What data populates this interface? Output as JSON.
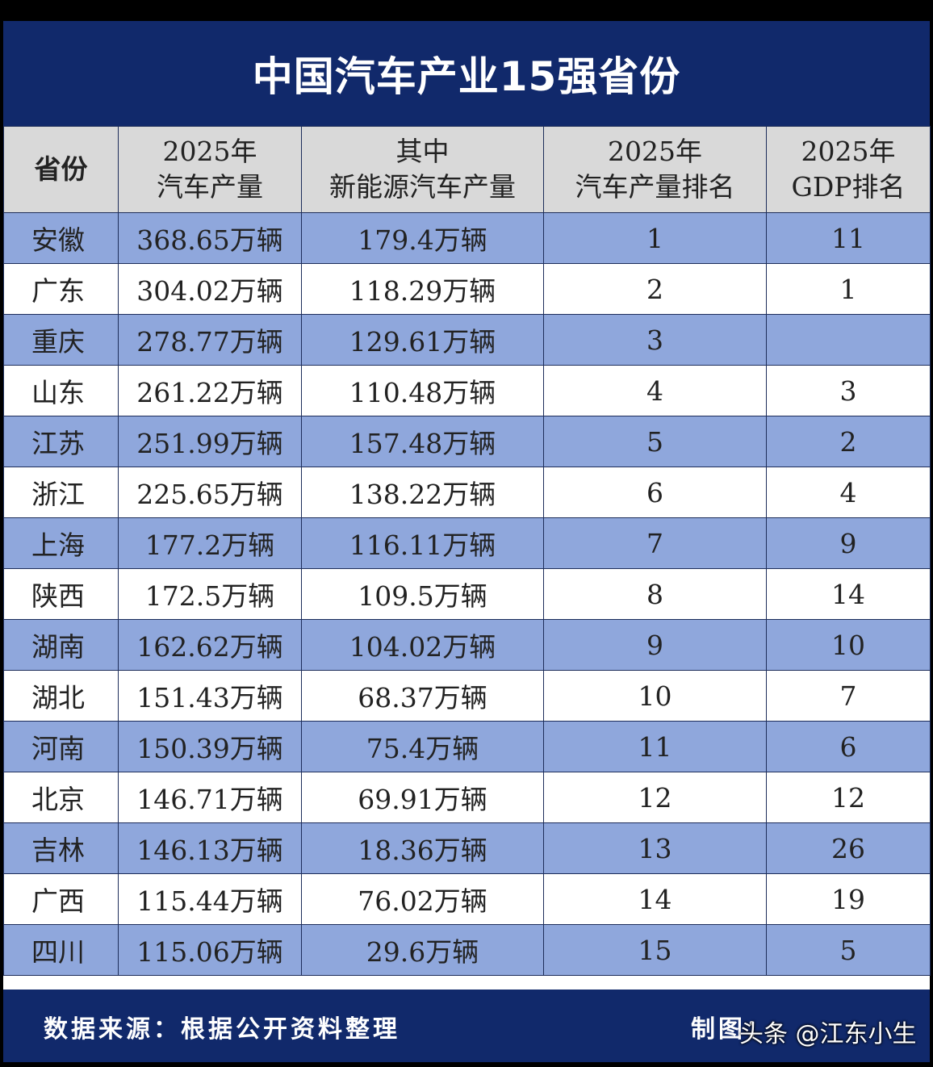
{
  "title": "中国汽车产业15强省份",
  "headers": {
    "province": "省份",
    "production_l1": "2025年",
    "production_l2": "汽车产量",
    "nev_l1": "其中",
    "nev_l2": "新能源汽车产量",
    "rank_l1": "2025年",
    "rank_l2": "汽车产量排名",
    "gdp_l1": "2025年",
    "gdp_l2": "GDP排名"
  },
  "rows": [
    {
      "province": "安徽",
      "production": "368.65万辆",
      "nev": "179.4万辆",
      "rank": "1",
      "gdp": "11"
    },
    {
      "province": "广东",
      "production": "304.02万辆",
      "nev": "118.29万辆",
      "rank": "2",
      "gdp": "1"
    },
    {
      "province": "重庆",
      "production": "278.77万辆",
      "nev": "129.61万辆",
      "rank": "3",
      "gdp": ""
    },
    {
      "province": "山东",
      "production": "261.22万辆",
      "nev": "110.48万辆",
      "rank": "4",
      "gdp": "3"
    },
    {
      "province": "江苏",
      "production": "251.99万辆",
      "nev": "157.48万辆",
      "rank": "5",
      "gdp": "2"
    },
    {
      "province": "浙江",
      "production": "225.65万辆",
      "nev": "138.22万辆",
      "rank": "6",
      "gdp": "4"
    },
    {
      "province": "上海",
      "production": "177.2万辆",
      "nev": "116.11万辆",
      "rank": "7",
      "gdp": "9"
    },
    {
      "province": "陕西",
      "production": "172.5万辆",
      "nev": "109.5万辆",
      "rank": "8",
      "gdp": "14"
    },
    {
      "province": "湖南",
      "production": "162.62万辆",
      "nev": "104.02万辆",
      "rank": "9",
      "gdp": "10"
    },
    {
      "province": "湖北",
      "production": "151.43万辆",
      "nev": "68.37万辆",
      "rank": "10",
      "gdp": "7"
    },
    {
      "province": "河南",
      "production": "150.39万辆",
      "nev": "75.4万辆",
      "rank": "11",
      "gdp": "6"
    },
    {
      "province": "北京",
      "production": "146.71万辆",
      "nev": "69.91万辆",
      "rank": "12",
      "gdp": "12"
    },
    {
      "province": "吉林",
      "production": "146.13万辆",
      "nev": "18.36万辆",
      "rank": "13",
      "gdp": "26"
    },
    {
      "province": "广西",
      "production": "115.44万辆",
      "nev": "76.02万辆",
      "rank": "14",
      "gdp": "19"
    },
    {
      "province": "四川",
      "production": "115.06万辆",
      "nev": "29.6万辆",
      "rank": "15",
      "gdp": "5"
    }
  ],
  "footer": {
    "source": "数据来源：根据公开资料整理",
    "maker": "制图：",
    "watermark": "头条 @江东小生"
  },
  "colors": {
    "navy": "#11296b",
    "row_blue": "#8fa7dc",
    "header_gray": "#d9d9d9"
  }
}
